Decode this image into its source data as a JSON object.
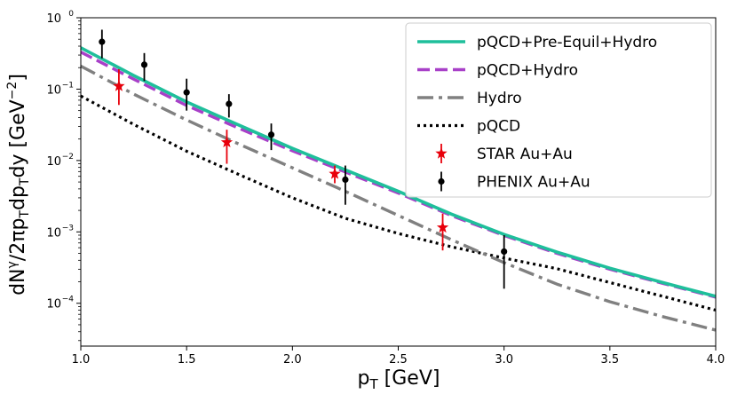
{
  "chart_data": {
    "type": "line",
    "title": "",
    "xlabel": "p",
    "xlabel_sub": "T",
    "xlabel_unit": " [GeV]",
    "ylabel_parts": [
      "dN",
      "γ",
      "/2πp",
      "T",
      "dp",
      "T",
      "dy [GeV",
      "−2",
      "]"
    ],
    "yscale": "log",
    "xlim": [
      1.0,
      4.0
    ],
    "ylim_exp": [
      -4.6,
      0
    ],
    "x_ticks": [
      1.0,
      1.5,
      2.0,
      2.5,
      3.0,
      3.5,
      4.0
    ],
    "x_tick_labels": [
      "1.0",
      "1.5",
      "2.0",
      "2.5",
      "3.0",
      "3.5",
      "4.0"
    ],
    "y_tick_exponents": [
      0,
      -1,
      -2,
      -3,
      -4
    ],
    "y_tick_base": "10",
    "y_tick_exponent_labels": [
      "0",
      "−1",
      "−2",
      "−3",
      "−4"
    ],
    "series": [
      {
        "name": "pQCD+Pre-Equil+Hydro",
        "style": "solid",
        "color": "#1fbf9b",
        "x": [
          1.0,
          1.25,
          1.5,
          1.75,
          2.0,
          2.25,
          2.5,
          2.75,
          3.0,
          3.25,
          3.5,
          3.75,
          4.0
        ],
        "y": [
          0.38,
          0.155,
          0.066,
          0.031,
          0.0148,
          0.0074,
          0.0037,
          0.00178,
          0.00092,
          0.00052,
          0.00031,
          0.000195,
          0.000125
        ]
      },
      {
        "name": "pQCD+Hydro",
        "style": "dashed",
        "color": "#a840c8",
        "x": [
          1.0,
          1.25,
          1.5,
          1.75,
          2.0,
          2.25,
          2.5,
          2.75,
          3.0,
          3.25,
          3.5,
          3.75,
          4.0
        ],
        "y": [
          0.33,
          0.138,
          0.059,
          0.028,
          0.0137,
          0.0069,
          0.0035,
          0.0017,
          0.00089,
          0.0005,
          0.0003,
          0.00019,
          0.000122
        ]
      },
      {
        "name": "Hydro",
        "style": "dashdot",
        "color": "#808080",
        "x": [
          1.0,
          1.25,
          1.5,
          1.75,
          2.0,
          2.25,
          2.5,
          2.75,
          3.0,
          3.25,
          3.5,
          3.75,
          4.0
        ],
        "y": [
          0.21,
          0.085,
          0.037,
          0.0168,
          0.0079,
          0.0037,
          0.0017,
          0.00078,
          0.00037,
          0.000185,
          0.000105,
          6.5e-05,
          4.2e-05
        ]
      },
      {
        "name": "pQCD",
        "style": "dotted",
        "color": "#000000",
        "x": [
          1.0,
          1.25,
          1.5,
          1.75,
          2.0,
          2.25,
          2.5,
          2.75,
          3.0,
          3.25,
          3.5,
          3.75,
          4.0
        ],
        "y": [
          0.08,
          0.032,
          0.0135,
          0.0063,
          0.003,
          0.00155,
          0.00095,
          0.00062,
          0.00043,
          0.000305,
          0.000195,
          0.000125,
          8e-05
        ]
      }
    ],
    "data_points": [
      {
        "name": "STAR Au+Au",
        "marker": "star",
        "color": "#e8000b",
        "points": [
          {
            "x": 1.18,
            "y": 0.11,
            "ylo": 0.06,
            "yhi": 0.19
          },
          {
            "x": 1.69,
            "y": 0.018,
            "ylo": 0.009,
            "yhi": 0.027
          },
          {
            "x": 2.2,
            "y": 0.0065,
            "ylo": 0.0048,
            "yhi": 0.0085
          },
          {
            "x": 2.71,
            "y": 0.00115,
            "ylo": 0.00055,
            "yhi": 0.0018
          }
        ]
      },
      {
        "name": "PHENIX Au+Au",
        "marker": "circle",
        "color": "#000000",
        "points": [
          {
            "x": 1.1,
            "y": 0.46,
            "ylo": 0.27,
            "yhi": 0.68
          },
          {
            "x": 1.3,
            "y": 0.22,
            "ylo": 0.13,
            "yhi": 0.32
          },
          {
            "x": 1.5,
            "y": 0.09,
            "ylo": 0.05,
            "yhi": 0.14
          },
          {
            "x": 1.7,
            "y": 0.062,
            "ylo": 0.04,
            "yhi": 0.085
          },
          {
            "x": 1.9,
            "y": 0.023,
            "ylo": 0.014,
            "yhi": 0.033
          },
          {
            "x": 2.25,
            "y": 0.0054,
            "ylo": 0.0024,
            "yhi": 0.0085
          },
          {
            "x": 3.0,
            "y": 0.00053,
            "ylo": 0.00016,
            "yhi": 0.0009
          }
        ]
      }
    ],
    "legend_position": "top-right",
    "legend": [
      {
        "label": "pQCD+Pre-Equil+Hydro",
        "kind": "line",
        "style": "solid",
        "color": "#1fbf9b"
      },
      {
        "label": "pQCD+Hydro",
        "kind": "line",
        "style": "dashed",
        "color": "#a840c8"
      },
      {
        "label": "Hydro",
        "kind": "line",
        "style": "dashdot",
        "color": "#808080"
      },
      {
        "label": "pQCD",
        "kind": "line",
        "style": "dotted",
        "color": "#000000"
      },
      {
        "label": "STAR Au+Au",
        "kind": "marker",
        "marker": "star",
        "color": "#e8000b"
      },
      {
        "label": "PHENIX Au+Au",
        "kind": "marker",
        "marker": "circle",
        "color": "#000000"
      }
    ]
  }
}
